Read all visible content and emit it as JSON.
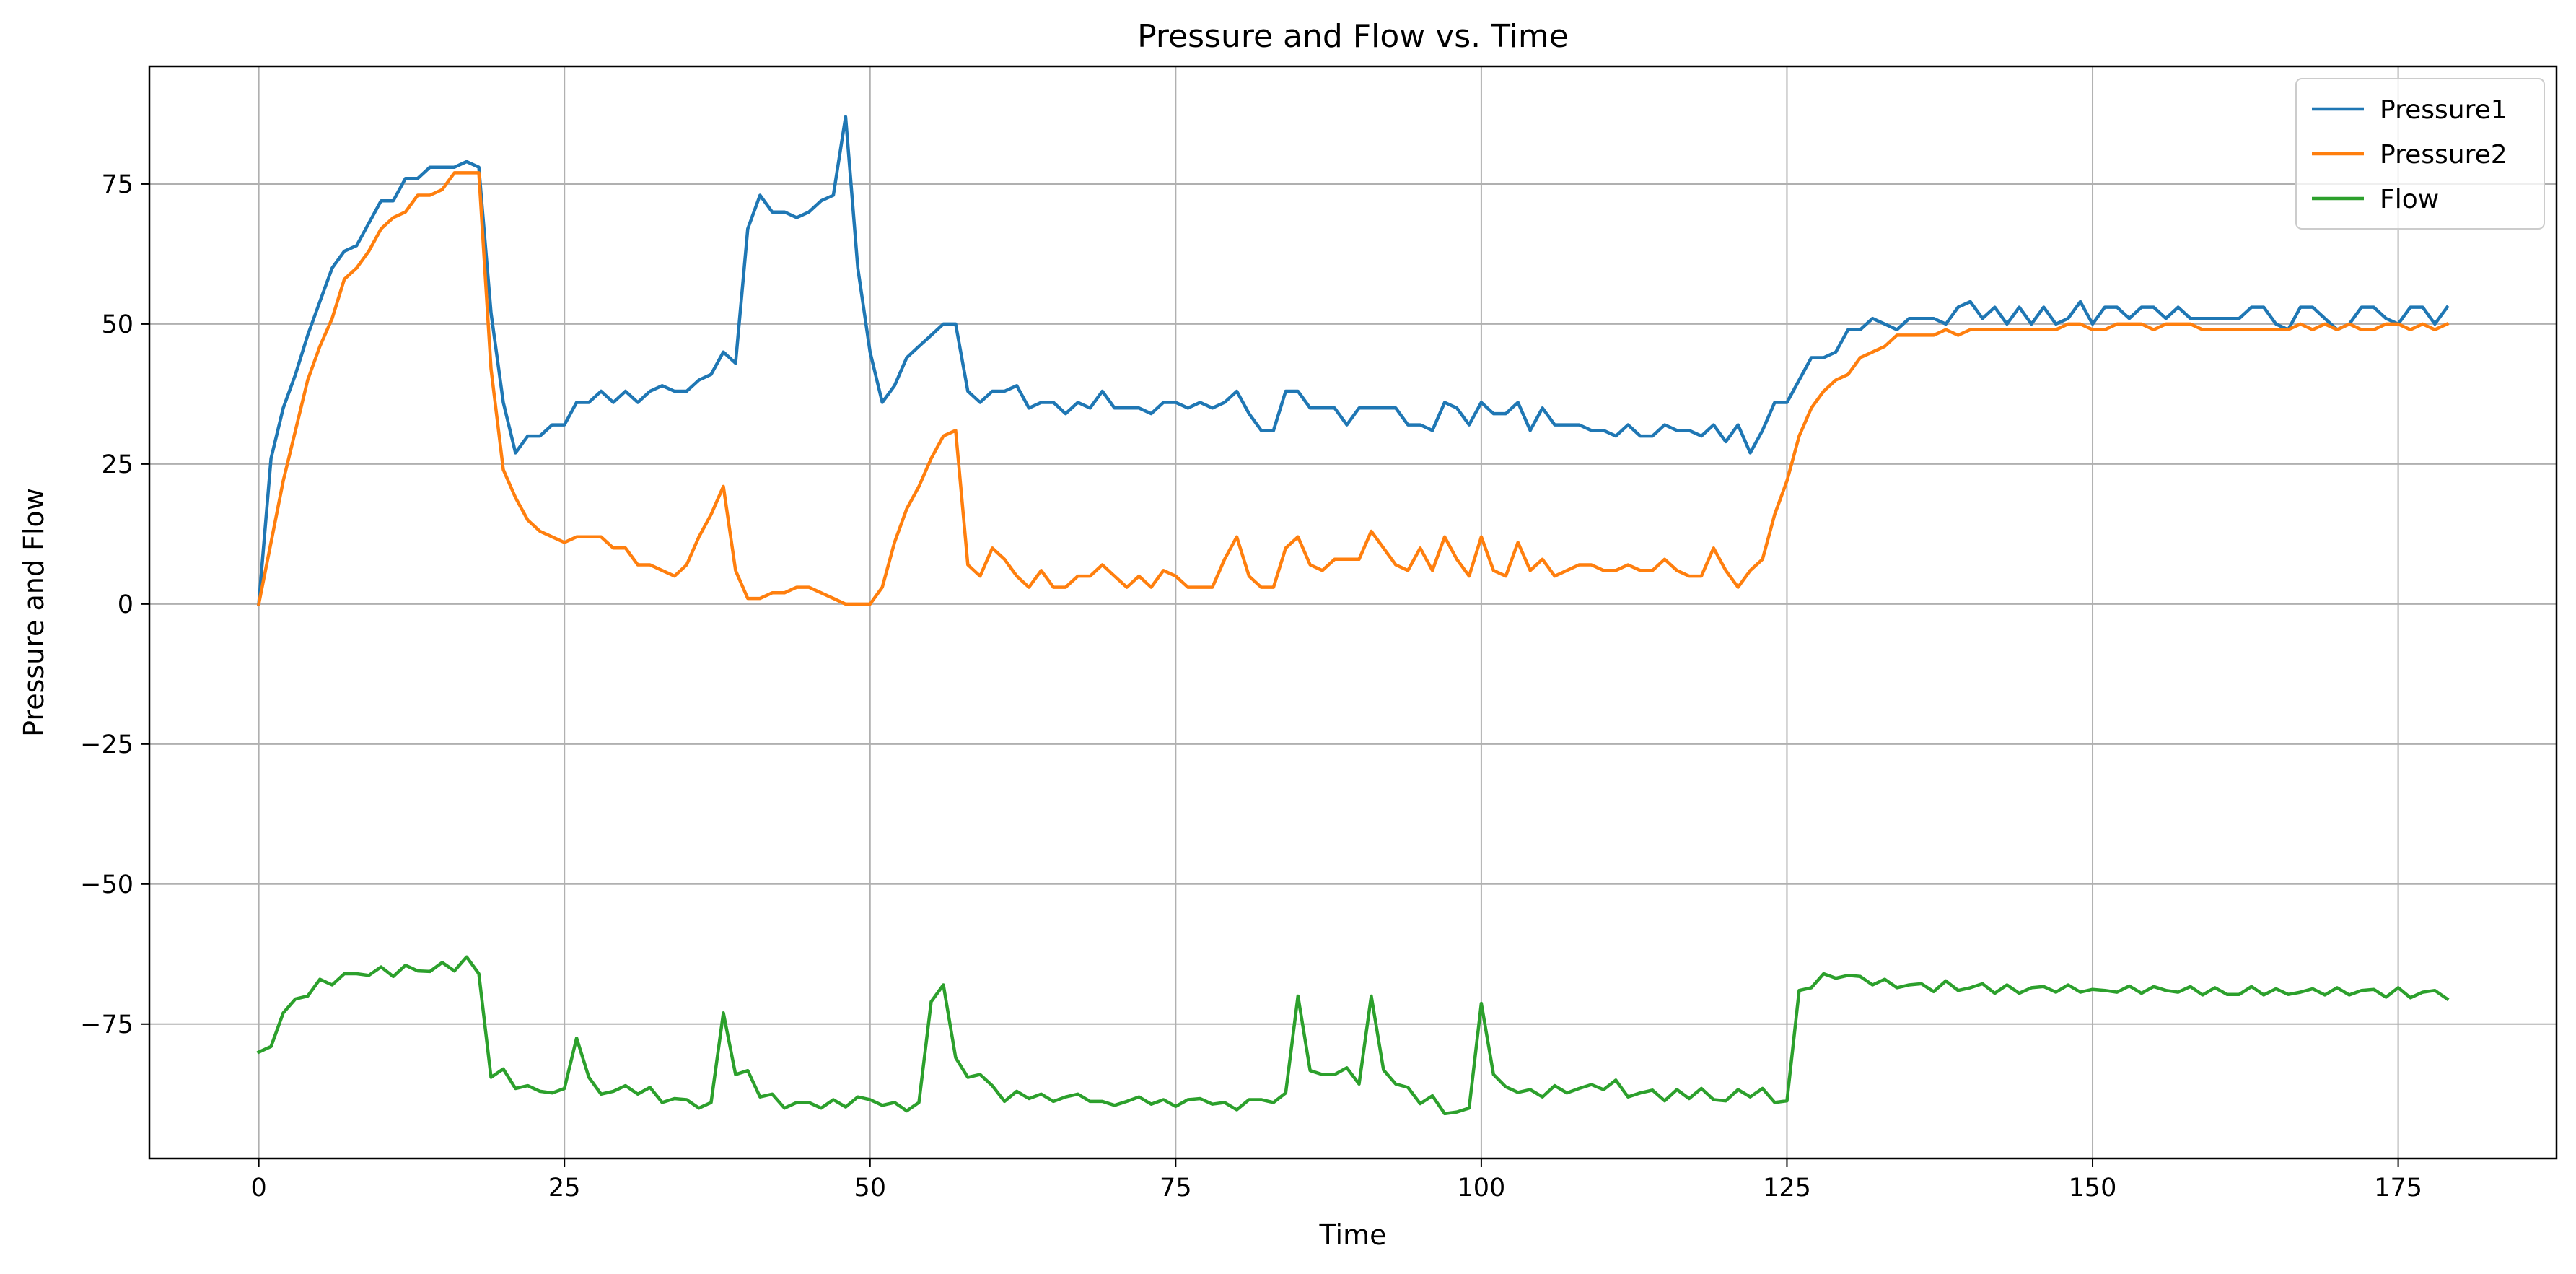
{
  "chart_data": {
    "type": "line",
    "title": "Pressure and Flow vs. Time",
    "xlabel": "Time",
    "ylabel": "Pressure and Flow",
    "xlim": [
      -8.95,
      187.95
    ],
    "ylim": [
      -99,
      96
    ],
    "xticks": [
      0,
      25,
      50,
      75,
      100,
      125,
      150,
      175
    ],
    "yticks": [
      -75,
      -50,
      -25,
      0,
      25,
      50,
      75
    ],
    "grid": true,
    "legend_position": "top-right",
    "x": [
      0,
      1,
      2,
      3,
      4,
      5,
      6,
      7,
      8,
      9,
      10,
      11,
      12,
      13,
      14,
      15,
      16,
      17,
      18,
      19,
      20,
      21,
      22,
      23,
      24,
      25,
      26,
      27,
      28,
      29,
      30,
      31,
      32,
      33,
      34,
      35,
      36,
      37,
      38,
      39,
      40,
      41,
      42,
      43,
      44,
      45,
      46,
      47,
      48,
      49,
      50,
      51,
      52,
      53,
      54,
      55,
      56,
      57,
      58,
      59,
      60,
      61,
      62,
      63,
      64,
      65,
      66,
      67,
      68,
      69,
      70,
      71,
      72,
      73,
      74,
      75,
      76,
      77,
      78,
      79,
      80,
      81,
      82,
      83,
      84,
      85,
      86,
      87,
      88,
      89,
      90,
      91,
      92,
      93,
      94,
      95,
      96,
      97,
      98,
      99,
      100,
      101,
      102,
      103,
      104,
      105,
      106,
      107,
      108,
      109,
      110,
      111,
      112,
      113,
      114,
      115,
      116,
      117,
      118,
      119,
      120,
      121,
      122,
      123,
      124,
      125,
      126,
      127,
      128,
      129,
      130,
      131,
      132,
      133,
      134,
      135,
      136,
      137,
      138,
      139,
      140,
      141,
      142,
      143,
      144,
      145,
      146,
      147,
      148,
      149,
      150,
      151,
      152,
      153,
      154,
      155,
      156,
      157,
      158,
      159,
      160,
      161,
      162,
      163,
      164,
      165,
      166,
      167,
      168,
      169,
      170,
      171,
      172,
      173,
      174,
      175,
      176,
      177,
      178,
      179
    ],
    "series": [
      {
        "name": "Pressure1",
        "color": "#1f77b4",
        "values": [
          0,
          26,
          35,
          41,
          48,
          54,
          60,
          63,
          64,
          68,
          72,
          72,
          76,
          76,
          78,
          78,
          78,
          79,
          78,
          52,
          36,
          27,
          30,
          30,
          32,
          32,
          36,
          36,
          38,
          36,
          38,
          36,
          38,
          39,
          38,
          38,
          40,
          41,
          45,
          43,
          67,
          73,
          70,
          70,
          69,
          70,
          72,
          73,
          87,
          60,
          45,
          36,
          39,
          44,
          46,
          48,
          50,
          50,
          38,
          36,
          38,
          38,
          39,
          35,
          36,
          36,
          34,
          36,
          35,
          38,
          35,
          35,
          35,
          34,
          36,
          36,
          35,
          36,
          35,
          36,
          38,
          34,
          31,
          31,
          38,
          38,
          35,
          35,
          35,
          32,
          35,
          35,
          35,
          35,
          32,
          32,
          31,
          36,
          35,
          32,
          36,
          34,
          34,
          36,
          31,
          35,
          32,
          32,
          32,
          31,
          31,
          30,
          32,
          30,
          30,
          32,
          31,
          31,
          30,
          32,
          29,
          32,
          27,
          31,
          36,
          36,
          40,
          44,
          44,
          45,
          49,
          49,
          51,
          50,
          49,
          51,
          51,
          51,
          50,
          53,
          54,
          51,
          53,
          50,
          53,
          50,
          53,
          50,
          51,
          54,
          50,
          53,
          53,
          51,
          53,
          53,
          51,
          53,
          51,
          51,
          51,
          51,
          51,
          53,
          53,
          50,
          49,
          53,
          53,
          51,
          49,
          50,
          53,
          53,
          51,
          50,
          53,
          53,
          50,
          53
        ]
      },
      {
        "name": "Pressure2",
        "color": "#ff7f0e",
        "values": [
          0,
          11,
          22,
          31,
          40,
          46,
          51,
          58,
          60,
          63,
          67,
          69,
          70,
          73,
          73,
          74,
          77,
          77,
          77,
          42,
          24,
          19,
          15,
          13,
          12,
          11,
          12,
          12,
          12,
          10,
          10,
          7,
          7,
          6,
          5,
          7,
          12,
          16,
          21,
          6,
          1,
          1,
          2,
          2,
          3,
          3,
          2,
          1,
          0,
          0,
          0,
          3,
          11,
          17,
          21,
          26,
          30,
          31,
          7,
          5,
          10,
          8,
          5,
          3,
          6,
          3,
          3,
          5,
          5,
          7,
          5,
          3,
          5,
          3,
          6,
          5,
          3,
          3,
          3,
          8,
          12,
          5,
          3,
          3,
          10,
          12,
          7,
          6,
          8,
          8,
          8,
          13,
          10,
          7,
          6,
          10,
          6,
          12,
          8,
          5,
          12,
          6,
          5,
          11,
          6,
          8,
          5,
          6,
          7,
          7,
          6,
          6,
          7,
          6,
          6,
          8,
          6,
          5,
          5,
          10,
          6,
          3,
          6,
          8,
          16,
          22,
          30,
          35,
          38,
          40,
          41,
          44,
          45,
          46,
          48,
          48,
          48,
          48,
          49,
          48,
          49,
          49,
          49,
          49,
          49,
          49,
          49,
          49,
          50,
          50,
          49,
          49,
          50,
          50,
          50,
          49,
          50,
          50,
          50,
          49,
          49,
          49,
          49,
          49,
          49,
          49,
          49,
          50,
          49,
          50,
          49,
          50,
          49,
          49,
          50,
          50,
          49,
          50,
          49,
          50
        ]
      },
      {
        "name": "Flow",
        "color": "#2ca02c",
        "values": [
          -80,
          -79,
          -73,
          -70.5,
          -70,
          -67,
          -68,
          -66,
          -66,
          -66.3,
          -64.8,
          -66.5,
          -64.5,
          -65.5,
          -65.6,
          -64,
          -65.5,
          -63,
          -66,
          -84.5,
          -83,
          -86.5,
          -86,
          -87,
          -87.3,
          -86.5,
          -77.5,
          -84.5,
          -87.5,
          -87,
          -86,
          -87.5,
          -86.3,
          -89,
          -88.3,
          -88.5,
          -90,
          -89,
          -73,
          -84,
          -83.3,
          -88,
          -87.5,
          -90,
          -89,
          -89,
          -90,
          -88.5,
          -89.8,
          -88,
          -88.5,
          -89.5,
          -89,
          -90.5,
          -89,
          -71,
          -68,
          -81,
          -84.5,
          -84,
          -86,
          -88.8,
          -87,
          -88.3,
          -87.5,
          -88.8,
          -88,
          -87.5,
          -88.8,
          -88.8,
          -89.5,
          -88.8,
          -88,
          -89.3,
          -88.5,
          -89.7,
          -88.5,
          -88.3,
          -89.3,
          -89,
          -90.3,
          -88.5,
          -88.5,
          -89,
          -87.3,
          -70,
          -83.3,
          -84,
          -84,
          -82.8,
          -85.7,
          -70,
          -83.2,
          -85.7,
          -86.3,
          -89.2,
          -87.8,
          -91,
          -90.7,
          -90,
          -71.3,
          -84,
          -86.2,
          -87.2,
          -86.7,
          -88,
          -86,
          -87.3,
          -86.5,
          -85.8,
          -86.7,
          -85,
          -88,
          -87.3,
          -86.8,
          -88.7,
          -86.7,
          -88.3,
          -86.5,
          -88.5,
          -88.7,
          -86.7,
          -88,
          -86.5,
          -89,
          -88.7,
          -69,
          -68.5,
          -66,
          -66.8,
          -66.3,
          -66.5,
          -68,
          -67,
          -68.5,
          -68,
          -67.8,
          -69.2,
          -67.3,
          -69,
          -68.5,
          -67.8,
          -69.5,
          -68,
          -69.5,
          -68.5,
          -68.3,
          -69.3,
          -68,
          -69.3,
          -68.8,
          -69,
          -69.3,
          -68.2,
          -69.5,
          -68.3,
          -69,
          -69.3,
          -68.3,
          -69.8,
          -68.5,
          -69.7,
          -69.7,
          -68.3,
          -69.8,
          -68.7,
          -69.7,
          -69.3,
          -68.7,
          -69.8,
          -68.5,
          -69.8,
          -69,
          -68.8,
          -70.2,
          -68.5,
          -70.3,
          -69.3,
          -69,
          -70.5
        ]
      }
    ]
  }
}
